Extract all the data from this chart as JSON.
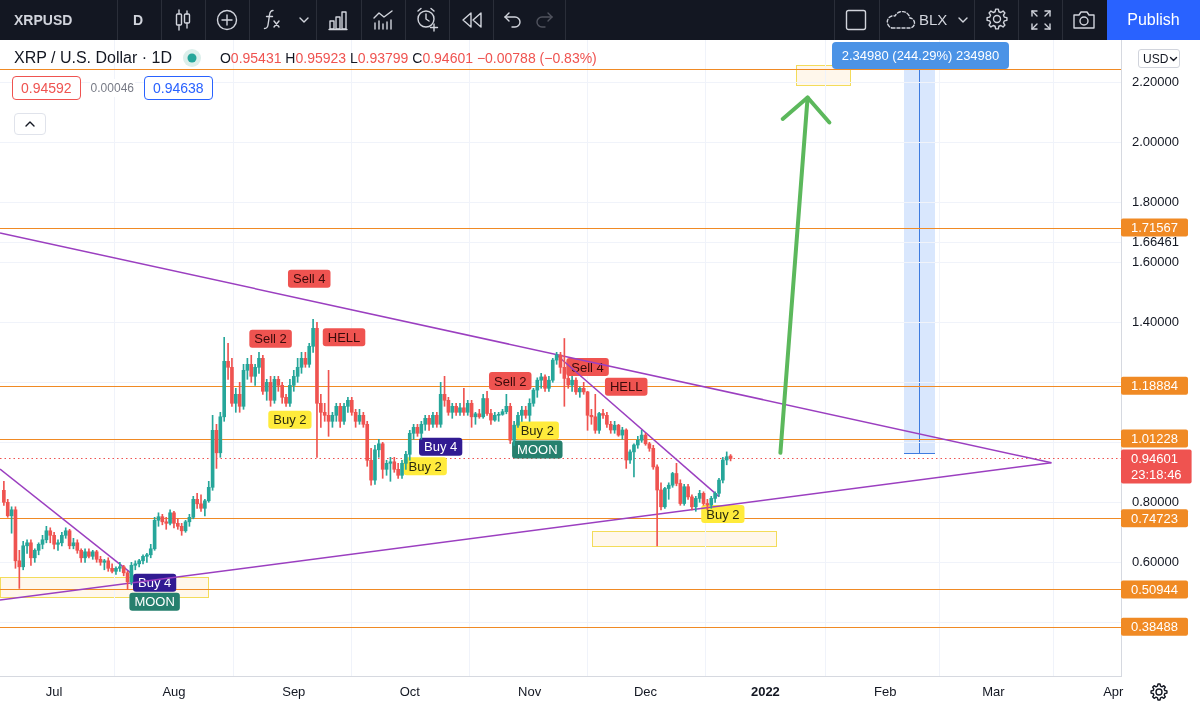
{
  "chart_data": {
    "type": "candlestick",
    "title": "XRP / U.S. Dollar · 1D",
    "subtitle": "O0.95431 H0.95923 L0.93799 C0.94601 −0.00788 (−0.83%)",
    "x": [
      "2021-06-18",
      "2021-06-19",
      "2021-06-20",
      "2021-06-21",
      "2021-06-22",
      "2021-06-23",
      "2021-06-24",
      "2021-06-25",
      "2021-06-26",
      "2021-06-27",
      "2021-06-28",
      "2021-06-29",
      "2021-06-30",
      "2021-07-01",
      "2021-07-02",
      "2021-07-03",
      "2021-07-04",
      "2021-07-05",
      "2021-07-06",
      "2021-07-07",
      "2021-07-08",
      "2021-07-09",
      "2021-07-10",
      "2021-07-11",
      "2021-07-12",
      "2021-07-13",
      "2021-07-14",
      "2021-07-15",
      "2021-07-16",
      "2021-07-17",
      "2021-07-18",
      "2021-07-19",
      "2021-07-20",
      "2021-07-21",
      "2021-07-22",
      "2021-07-23",
      "2021-07-24",
      "2021-07-25",
      "2021-07-26",
      "2021-07-27",
      "2021-07-28",
      "2021-07-29",
      "2021-07-30",
      "2021-07-31",
      "2021-08-01",
      "2021-08-02",
      "2021-08-03",
      "2021-08-04",
      "2021-08-05",
      "2021-08-06",
      "2021-08-07",
      "2021-08-08",
      "2021-08-09",
      "2021-08-10",
      "2021-08-11",
      "2021-08-12",
      "2021-08-13",
      "2021-08-14",
      "2021-08-15",
      "2021-08-16",
      "2021-08-17",
      "2021-08-18",
      "2021-08-19",
      "2021-08-20",
      "2021-08-21",
      "2021-08-22",
      "2021-08-23",
      "2021-08-24",
      "2021-08-25",
      "2021-08-26",
      "2021-08-27",
      "2021-08-28",
      "2021-08-29",
      "2021-08-30",
      "2021-08-31",
      "2021-09-01",
      "2021-09-02",
      "2021-09-03",
      "2021-09-04",
      "2021-09-05",
      "2021-09-06",
      "2021-09-07",
      "2021-09-08",
      "2021-09-09",
      "2021-09-10",
      "2021-09-11",
      "2021-09-12",
      "2021-09-13",
      "2021-09-14",
      "2021-09-15",
      "2021-09-16",
      "2021-09-17",
      "2021-09-18",
      "2021-09-19",
      "2021-09-20",
      "2021-09-21",
      "2021-09-22",
      "2021-09-23",
      "2021-09-24",
      "2021-09-25",
      "2021-09-26",
      "2021-09-27",
      "2021-09-28",
      "2021-09-29",
      "2021-09-30",
      "2021-10-01",
      "2021-10-02",
      "2021-10-03",
      "2021-10-04",
      "2021-10-05",
      "2021-10-06",
      "2021-10-07",
      "2021-10-08",
      "2021-10-09",
      "2021-10-10",
      "2021-10-11",
      "2021-10-12",
      "2021-10-13",
      "2021-10-14",
      "2021-10-15",
      "2021-10-16",
      "2021-10-17",
      "2021-10-18",
      "2021-10-19",
      "2021-10-20",
      "2021-10-21",
      "2021-10-22",
      "2021-10-23",
      "2021-10-24",
      "2021-10-25",
      "2021-10-26",
      "2021-10-27",
      "2021-10-28",
      "2021-10-29",
      "2021-10-30",
      "2021-10-31",
      "2021-11-01",
      "2021-11-02",
      "2021-11-03",
      "2021-11-04",
      "2021-11-05",
      "2021-11-06",
      "2021-11-07",
      "2021-11-08",
      "2021-11-09",
      "2021-11-10",
      "2021-11-11",
      "2021-11-12",
      "2021-11-13",
      "2021-11-14",
      "2021-11-15",
      "2021-11-16",
      "2021-11-17",
      "2021-11-18",
      "2021-11-19",
      "2021-11-20",
      "2021-11-21",
      "2021-11-22",
      "2021-11-23",
      "2021-11-24",
      "2021-11-25",
      "2021-11-26",
      "2021-11-27",
      "2021-11-28",
      "2021-11-29",
      "2021-11-30",
      "2021-12-01",
      "2021-12-02",
      "2021-12-03",
      "2021-12-04",
      "2021-12-05",
      "2021-12-06",
      "2021-12-07",
      "2021-12-08",
      "2021-12-09",
      "2021-12-10",
      "2021-12-11",
      "2021-12-12",
      "2021-12-13",
      "2021-12-14",
      "2021-12-15",
      "2021-12-16",
      "2021-12-17",
      "2021-12-18",
      "2021-12-19",
      "2021-12-20",
      "2021-12-21",
      "2021-12-22",
      "2021-12-23"
    ],
    "ohlc": [
      [
        0.84,
        0.87,
        0.79,
        0.8
      ],
      [
        0.8,
        0.81,
        0.75,
        0.755
      ],
      [
        0.755,
        0.785,
        0.697,
        0.775
      ],
      [
        0.775,
        0.785,
        0.58,
        0.605
      ],
      [
        0.605,
        0.64,
        0.513,
        0.585
      ],
      [
        0.585,
        0.67,
        0.575,
        0.655
      ],
      [
        0.655,
        0.675,
        0.63,
        0.665
      ],
      [
        0.665,
        0.675,
        0.59,
        0.615
      ],
      [
        0.615,
        0.645,
        0.6,
        0.64
      ],
      [
        0.64,
        0.665,
        0.625,
        0.66
      ],
      [
        0.66,
        0.69,
        0.645,
        0.675
      ],
      [
        0.675,
        0.72,
        0.665,
        0.705
      ],
      [
        0.705,
        0.715,
        0.665,
        0.69
      ],
      [
        0.69,
        0.7,
        0.645,
        0.66
      ],
      [
        0.66,
        0.675,
        0.64,
        0.665
      ],
      [
        0.665,
        0.7,
        0.655,
        0.69
      ],
      [
        0.69,
        0.715,
        0.68,
        0.705
      ],
      [
        0.705,
        0.71,
        0.645,
        0.655
      ],
      [
        0.655,
        0.68,
        0.645,
        0.665
      ],
      [
        0.665,
        0.675,
        0.63,
        0.64
      ],
      [
        0.64,
        0.645,
        0.6,
        0.615
      ],
      [
        0.615,
        0.645,
        0.6,
        0.635
      ],
      [
        0.635,
        0.645,
        0.615,
        0.62
      ],
      [
        0.62,
        0.64,
        0.61,
        0.635
      ],
      [
        0.635,
        0.64,
        0.6,
        0.61
      ],
      [
        0.61,
        0.62,
        0.59,
        0.6
      ],
      [
        0.6,
        0.61,
        0.575,
        0.605
      ],
      [
        0.605,
        0.615,
        0.57,
        0.58
      ],
      [
        0.58,
        0.595,
        0.565,
        0.57
      ],
      [
        0.57,
        0.585,
        0.56,
        0.58
      ],
      [
        0.58,
        0.6,
        0.57,
        0.585
      ],
      [
        0.585,
        0.59,
        0.555,
        0.565
      ],
      [
        0.565,
        0.57,
        0.51,
        0.535
      ],
      [
        0.535,
        0.6,
        0.525,
        0.59
      ],
      [
        0.59,
        0.605,
        0.575,
        0.595
      ],
      [
        0.595,
        0.61,
        0.585,
        0.605
      ],
      [
        0.605,
        0.625,
        0.595,
        0.62
      ],
      [
        0.62,
        0.63,
        0.6,
        0.625
      ],
      [
        0.625,
        0.66,
        0.615,
        0.645
      ],
      [
        0.645,
        0.75,
        0.64,
        0.74
      ],
      [
        0.74,
        0.765,
        0.72,
        0.752
      ],
      [
        0.752,
        0.76,
        0.725,
        0.735
      ],
      [
        0.735,
        0.75,
        0.71,
        0.73
      ],
      [
        0.73,
        0.775,
        0.725,
        0.765
      ],
      [
        0.765,
        0.77,
        0.715,
        0.73
      ],
      [
        0.73,
        0.745,
        0.71,
        0.72
      ],
      [
        0.72,
        0.73,
        0.69,
        0.705
      ],
      [
        0.705,
        0.74,
        0.7,
        0.735
      ],
      [
        0.735,
        0.76,
        0.72,
        0.75
      ],
      [
        0.75,
        0.82,
        0.745,
        0.81
      ],
      [
        0.81,
        0.83,
        0.78,
        0.795
      ],
      [
        0.795,
        0.825,
        0.77,
        0.78
      ],
      [
        0.78,
        0.81,
        0.755,
        0.805
      ],
      [
        0.805,
        0.87,
        0.8,
        0.85
      ],
      [
        0.85,
        1.09,
        0.84,
        1.04
      ],
      [
        1.04,
        1.06,
        0.913,
        0.965
      ],
      [
        0.965,
        1.1,
        0.95,
        1.085
      ],
      [
        1.085,
        1.35,
        1.07,
        1.27
      ],
      [
        1.27,
        1.33,
        1.21,
        1.25
      ],
      [
        1.25,
        1.28,
        1.12,
        1.13
      ],
      [
        1.13,
        1.18,
        1.1,
        1.16
      ],
      [
        1.16,
        1.2,
        1.1,
        1.12
      ],
      [
        1.12,
        1.26,
        1.11,
        1.24
      ],
      [
        1.24,
        1.28,
        1.21,
        1.26
      ],
      [
        1.26,
        1.29,
        1.2,
        1.22
      ],
      [
        1.22,
        1.26,
        1.19,
        1.25
      ],
      [
        1.25,
        1.3,
        1.23,
        1.28
      ],
      [
        1.28,
        1.29,
        1.16,
        1.17
      ],
      [
        1.17,
        1.21,
        1.14,
        1.2
      ],
      [
        1.2,
        1.22,
        1.12,
        1.14
      ],
      [
        1.14,
        1.22,
        1.13,
        1.21
      ],
      [
        1.21,
        1.22,
        1.17,
        1.19
      ],
      [
        1.19,
        1.2,
        1.13,
        1.15
      ],
      [
        1.15,
        1.16,
        1.12,
        1.13
      ],
      [
        1.13,
        1.21,
        1.12,
        1.19
      ],
      [
        1.19,
        1.24,
        1.17,
        1.22
      ],
      [
        1.22,
        1.28,
        1.2,
        1.25
      ],
      [
        1.25,
        1.3,
        1.23,
        1.28
      ],
      [
        1.28,
        1.3,
        1.25,
        1.26
      ],
      [
        1.26,
        1.33,
        1.25,
        1.32
      ],
      [
        1.32,
        1.41,
        1.3,
        1.38
      ],
      [
        1.38,
        1.4,
        0.95,
        1.13
      ],
      [
        1.13,
        1.16,
        1.05,
        1.1
      ],
      [
        1.1,
        1.13,
        1.07,
        1.09
      ],
      [
        1.09,
        1.24,
        1.02,
        1.07
      ],
      [
        1.07,
        1.1,
        1.05,
        1.09
      ],
      [
        1.09,
        1.13,
        1.07,
        1.12
      ],
      [
        1.12,
        1.13,
        1.05,
        1.07
      ],
      [
        1.07,
        1.13,
        1.06,
        1.12
      ],
      [
        1.12,
        1.15,
        1.1,
        1.14
      ],
      [
        1.14,
        1.15,
        1.09,
        1.1
      ],
      [
        1.1,
        1.11,
        1.05,
        1.07
      ],
      [
        1.07,
        1.11,
        1.06,
        1.09
      ],
      [
        1.09,
        1.1,
        1.05,
        1.06
      ],
      [
        1.06,
        1.07,
        0.92,
        0.94
      ],
      [
        0.94,
        0.98,
        0.857,
        0.874
      ],
      [
        0.874,
        0.99,
        0.86,
        0.975
      ],
      [
        0.975,
        1.01,
        0.95,
        0.995
      ],
      [
        0.995,
        1.0,
        0.88,
        0.91
      ],
      [
        0.91,
        0.94,
        0.89,
        0.93
      ],
      [
        0.93,
        0.95,
        0.87,
        0.935
      ],
      [
        0.935,
        0.95,
        0.9,
        0.91
      ],
      [
        0.91,
        0.93,
        0.88,
        0.89
      ],
      [
        0.89,
        0.94,
        0.88,
        0.93
      ],
      [
        0.93,
        0.97,
        0.91,
        0.96
      ],
      [
        0.96,
        1.04,
        0.94,
        1.03
      ],
      [
        1.03,
        1.06,
        1.01,
        1.05
      ],
      [
        1.05,
        1.06,
        1.02,
        1.03
      ],
      [
        1.03,
        1.07,
        1.01,
        1.06
      ],
      [
        1.06,
        1.09,
        1.04,
        1.08
      ],
      [
        1.08,
        1.09,
        1.04,
        1.06
      ],
      [
        1.06,
        1.1,
        1.05,
        1.09
      ],
      [
        1.09,
        1.1,
        1.05,
        1.06
      ],
      [
        1.06,
        1.2,
        1.05,
        1.16
      ],
      [
        1.16,
        1.22,
        1.12,
        1.14
      ],
      [
        1.14,
        1.15,
        1.09,
        1.1
      ],
      [
        1.1,
        1.13,
        1.08,
        1.12
      ],
      [
        1.12,
        1.13,
        1.09,
        1.1
      ],
      [
        1.1,
        1.13,
        1.09,
        1.115
      ],
      [
        1.115,
        1.18,
        1.09,
        1.1
      ],
      [
        1.1,
        1.14,
        1.09,
        1.13
      ],
      [
        1.13,
        1.14,
        1.05,
        1.085
      ],
      [
        1.085,
        1.1,
        1.06,
        1.095
      ],
      [
        1.095,
        1.11,
        1.08,
        1.085
      ],
      [
        1.085,
        1.16,
        1.08,
        1.146
      ],
      [
        1.146,
        1.17,
        1.09,
        1.096
      ],
      [
        1.096,
        1.11,
        1.06,
        1.074
      ],
      [
        1.074,
        1.1,
        1.07,
        1.09
      ],
      [
        1.09,
        1.1,
        1.07,
        1.093
      ],
      [
        1.093,
        1.11,
        1.09,
        1.102
      ],
      [
        1.102,
        1.16,
        1.095,
        1.12
      ],
      [
        1.12,
        1.13,
        0.996,
        1.007
      ],
      [
        1.007,
        1.07,
        0.99,
        1.057
      ],
      [
        1.057,
        1.1,
        1.05,
        1.09
      ],
      [
        1.09,
        1.12,
        1.07,
        1.107
      ],
      [
        1.107,
        1.12,
        1.08,
        1.09
      ],
      [
        1.09,
        1.145,
        1.07,
        1.13
      ],
      [
        1.13,
        1.18,
        1.12,
        1.174
      ],
      [
        1.174,
        1.215,
        1.15,
        1.207
      ],
      [
        1.207,
        1.23,
        1.18,
        1.218
      ],
      [
        1.218,
        1.225,
        1.17,
        1.18
      ],
      [
        1.18,
        1.22,
        1.17,
        1.207
      ],
      [
        1.207,
        1.28,
        1.2,
        1.274
      ],
      [
        1.274,
        1.3,
        1.26,
        1.291
      ],
      [
        1.291,
        1.3,
        1.23,
        1.25
      ],
      [
        1.25,
        1.346,
        1.12,
        1.213
      ],
      [
        1.213,
        1.23,
        1.18,
        1.191
      ],
      [
        1.191,
        1.22,
        1.17,
        1.207
      ],
      [
        1.207,
        1.215,
        1.16,
        1.168
      ],
      [
        1.168,
        1.185,
        1.15,
        1.18
      ],
      [
        1.18,
        1.2,
        1.16,
        1.168
      ],
      [
        1.168,
        1.17,
        1.04,
        1.09
      ],
      [
        1.09,
        1.11,
        1.06,
        1.085
      ],
      [
        1.085,
        1.16,
        1.03,
        1.04
      ],
      [
        1.04,
        1.1,
        1.03,
        1.096
      ],
      [
        1.096,
        1.11,
        1.08,
        1.09
      ],
      [
        1.09,
        1.1,
        1.05,
        1.06
      ],
      [
        1.06,
        1.07,
        1.03,
        1.041
      ],
      [
        1.041,
        1.07,
        1.03,
        1.057
      ],
      [
        1.057,
        1.06,
        1.02,
        1.024
      ],
      [
        1.024,
        1.05,
        1.01,
        1.041
      ],
      [
        1.041,
        1.045,
        0.913,
        0.941
      ],
      [
        0.941,
        0.975,
        0.93,
        0.968
      ],
      [
        0.968,
        0.995,
        0.885,
        0.991
      ],
      [
        0.991,
        1.02,
        0.98,
        1.007
      ],
      [
        1.007,
        1.04,
        1.0,
        1.024
      ],
      [
        1.024,
        1.03,
        0.99,
        0.995
      ],
      [
        0.995,
        1.0,
        0.97,
        0.98
      ],
      [
        0.98,
        0.99,
        0.91,
        0.918
      ],
      [
        0.918,
        0.925,
        0.655,
        0.841
      ],
      [
        0.841,
        0.865,
        0.775,
        0.785
      ],
      [
        0.785,
        0.85,
        0.78,
        0.846
      ],
      [
        0.846,
        0.865,
        0.81,
        0.857
      ],
      [
        0.857,
        0.9,
        0.85,
        0.896
      ],
      [
        0.896,
        0.93,
        0.855,
        0.863
      ],
      [
        0.863,
        0.875,
        0.79,
        0.796
      ],
      [
        0.796,
        0.86,
        0.79,
        0.852
      ],
      [
        0.852,
        0.86,
        0.81,
        0.818
      ],
      [
        0.818,
        0.825,
        0.775,
        0.785
      ],
      [
        0.785,
        0.82,
        0.77,
        0.813
      ],
      [
        0.813,
        0.84,
        0.8,
        0.83
      ],
      [
        0.83,
        0.835,
        0.79,
        0.796
      ],
      [
        0.796,
        0.81,
        0.775,
        0.791
      ],
      [
        0.791,
        0.82,
        0.78,
        0.813
      ],
      [
        0.813,
        0.835,
        0.8,
        0.83
      ],
      [
        0.83,
        0.88,
        0.82,
        0.874
      ],
      [
        0.874,
        0.95,
        0.865,
        0.941
      ],
      [
        0.941,
        0.968,
        0.925,
        0.952
      ],
      [
        0.95431,
        0.95923,
        0.93799,
        0.94601
      ]
    ],
    "colors": [
      "#ef5350",
      "#ef5350",
      "#26a69a",
      "#ef5350",
      "#ef5350",
      "#26a69a",
      "#26a69a",
      "#ef5350",
      "#26a69a",
      "#26a69a",
      "#26a69a",
      "#26a69a",
      "#ef5350",
      "#ef5350",
      "#26a69a",
      "#26a69a",
      "#26a69a",
      "#ef5350",
      "#26a69a",
      "#ef5350",
      "#ef5350",
      "#26a69a",
      "#ef5350",
      "#26a69a",
      "#ef5350",
      "#ef5350",
      "#26a69a",
      "#ef5350",
      "#ef5350",
      "#26a69a",
      "#26a69a",
      "#ef5350",
      "#ef5350",
      "#26a69a",
      "#26a69a",
      "#26a69a",
      "#26a69a",
      "#26a69a",
      "#26a69a",
      "#26a69a",
      "#26a69a",
      "#ef5350",
      "#ef5350",
      "#26a69a",
      "#ef5350",
      "#ef5350",
      "#ef5350",
      "#26a69a",
      "#26a69a",
      "#26a69a",
      "#ef5350",
      "#ef5350",
      "#26a69a",
      "#26a69a",
      "#26a69a",
      "#ef5350",
      "#26a69a",
      "#26a69a",
      "#ef5350",
      "#ef5350",
      "#26a69a",
      "#ef5350",
      "#26a69a",
      "#26a69a",
      "#ef5350",
      "#26a69a",
      "#26a69a",
      "#ef5350",
      "#26a69a",
      "#ef5350",
      "#26a69a",
      "#ef5350",
      "#ef5350",
      "#ef5350",
      "#26a69a",
      "#26a69a",
      "#26a69a",
      "#26a69a",
      "#ef5350",
      "#26a69a",
      "#26a69a",
      "#ef5350",
      "#ef5350",
      "#ef5350",
      "#ef5350",
      "#26a69a",
      "#26a69a",
      "#ef5350",
      "#26a69a",
      "#26a69a",
      "#ef5350",
      "#ef5350",
      "#26a69a",
      "#ef5350",
      "#ef5350",
      "#ef5350",
      "#26a69a",
      "#26a69a",
      "#ef5350",
      "#26a69a",
      "#26a69a",
      "#ef5350",
      "#ef5350",
      "#26a69a",
      "#26a69a",
      "#26a69a",
      "#26a69a",
      "#ef5350",
      "#26a69a",
      "#26a69a",
      "#ef5350",
      "#26a69a",
      "#ef5350",
      "#26a69a",
      "#ef5350",
      "#ef5350",
      "#26a69a",
      "#ef5350",
      "#26a69a",
      "#ef5350",
      "#26a69a",
      "#ef5350",
      "#26a69a",
      "#ef5350",
      "#26a69a",
      "#ef5350",
      "#ef5350",
      "#26a69a",
      "#26a69a",
      "#26a69a",
      "#26a69a",
      "#ef5350",
      "#26a69a",
      "#26a69a",
      "#26a69a",
      "#ef5350",
      "#26a69a",
      "#26a69a",
      "#26a69a",
      "#26a69a",
      "#ef5350",
      "#26a69a",
      "#26a69a",
      "#26a69a",
      "#ef5350",
      "#ef5350",
      "#ef5350",
      "#26a69a",
      "#ef5350",
      "#26a69a",
      "#ef5350",
      "#ef5350",
      "#ef5350",
      "#ef5350",
      "#26a69a",
      "#ef5350",
      "#ef5350",
      "#ef5350",
      "#26a69a",
      "#ef5350",
      "#26a69a",
      "#ef5350",
      "#26a69a",
      "#26a69a",
      "#26a69a",
      "#26a69a",
      "#ef5350",
      "#ef5350",
      "#ef5350",
      "#ef5350",
      "#ef5350",
      "#26a69a",
      "#26a69a",
      "#26a69a",
      "#ef5350",
      "#ef5350",
      "#26a69a",
      "#ef5350",
      "#ef5350",
      "#26a69a",
      "#26a69a",
      "#ef5350",
      "#ef5350",
      "#26a69a",
      "#26a69a",
      "#26a69a",
      "#26a69a",
      "#26a69a",
      "#ef5350"
    ],
    "xlim": [
      "2021-06-17",
      "2022-04-03"
    ],
    "xticks": [
      {
        "value": "2021-07-01",
        "label": "Jul"
      },
      {
        "value": "2021-08-01",
        "label": "Aug"
      },
      {
        "value": "2021-09-01",
        "label": "Sep"
      },
      {
        "value": "2021-10-01",
        "label": "Oct"
      },
      {
        "value": "2021-11-01",
        "label": "Nov"
      },
      {
        "value": "2021-12-01",
        "label": "Dec"
      },
      {
        "value": "2022-01-01",
        "label": "2022"
      },
      {
        "value": "2022-02-01",
        "label": "Feb"
      },
      {
        "value": "2022-03-01",
        "label": "Mar"
      },
      {
        "value": "2022-04-01",
        "label": "Apr"
      }
    ],
    "ylim": [
      0.221,
      2.341
    ],
    "yticks": [
      {
        "value": 0.4,
        "label": null
      },
      {
        "value": 0.6,
        "label": "0.60000"
      },
      {
        "value": 0.8,
        "label": "0.80000"
      },
      {
        "value": 1.0,
        "label": null
      },
      {
        "value": 1.2,
        "label": null
      },
      {
        "value": 1.4,
        "label": "1.40000"
      },
      {
        "value": 1.6,
        "label": "1.60000"
      },
      1.66461,
      {
        "value": 1.8,
        "label": "1.80000"
      },
      {
        "value": 2.0,
        "label": "2.00000"
      },
      {
        "value": 2.2,
        "label": "2.20000"
      }
    ],
    "grid": true,
    "ref_lines": [
      {
        "axis": "y",
        "value": 0.38488,
        "label": "0.38488",
        "color": "#f08a24"
      },
      {
        "axis": "y",
        "value": 0.50944,
        "label": "0.50944",
        "color": "#f08a24"
      },
      {
        "axis": "y",
        "value": 0.74723,
        "label": "0.74723",
        "color": "#f08a24"
      },
      {
        "axis": "y",
        "value": 1.01228,
        "label": "1.01228",
        "color": "#f08a24"
      },
      {
        "axis": "y",
        "value": 1.18884,
        "label": "1.18884",
        "color": "#f08a24"
      },
      {
        "axis": "y",
        "value": 1.71567,
        "label": "1.71567",
        "color": "#f08a24"
      },
      {
        "axis": "y",
        "value": 2.244,
        "color": "#f08a24"
      },
      {
        "axis": "y",
        "value": 0.94601,
        "label": "0.94601\n23:18:46",
        "color": "#ef5350",
        "line_style": "dotted"
      }
    ],
    "series": [
      {
        "type": "line",
        "color": "#9b3fc0",
        "x": [
          "2021-06-17",
          "2022-03-16"
        ],
        "values": [
          1.698,
          0.932
        ]
      },
      {
        "type": "line",
        "color": "#9b3fc0",
        "x": [
          "2021-06-17",
          "2022-03-16"
        ],
        "values": [
          0.474,
          0.932
        ]
      },
      {
        "type": "line",
        "color": "#9b3fc0",
        "x": [
          "2021-06-17",
          "2021-07-21"
        ],
        "values": [
          0.911,
          0.563
        ]
      },
      {
        "type": "line",
        "color": "#9b3fc0",
        "x": [
          "2021-11-08",
          "2021-12-20"
        ],
        "values": [
          1.291,
          0.819
        ]
      }
    ],
    "annotations": [
      "XRPUSD",
      "D",
      "BLX",
      "Publish",
      "USD",
      "0.94592",
      "0.00046",
      "0.94638",
      "2.34980 (244.29%) 234980",
      {
        "text": "Buy 4",
        "x": "2021-07-27",
        "y": 0.532
      },
      "MOON",
      {
        "text": "Sell 2",
        "x": "2021-08-26",
        "y": 1.345
      },
      {
        "text": "Sell 4",
        "x": "2021-09-05",
        "y": 1.545
      },
      {
        "text": "HELL",
        "x": "2021-09-14",
        "y": 1.35
      },
      {
        "text": "Buy 2",
        "x": "2021-08-31",
        "y": 1.075
      },
      {
        "text": "Buy 2",
        "x": "2021-10-05",
        "y": 0.92
      },
      {
        "text": "Buy 4",
        "x": "2021-10-09",
        "y": 0.985
      },
      {
        "text": "Sell 2",
        "x": "2021-10-27",
        "y": 1.204
      },
      {
        "text": "Buy 2",
        "x": "2021-11-03",
        "y": 1.039
      },
      "MOON",
      {
        "text": "Sell 4",
        "x": "2021-11-16",
        "y": 1.251
      },
      {
        "text": "HELL",
        "x": "2021-11-26",
        "y": 1.185
      },
      {
        "text": "Buy 2",
        "x": "2021-12-21",
        "y": 0.761
      }
    ]
  }
}
